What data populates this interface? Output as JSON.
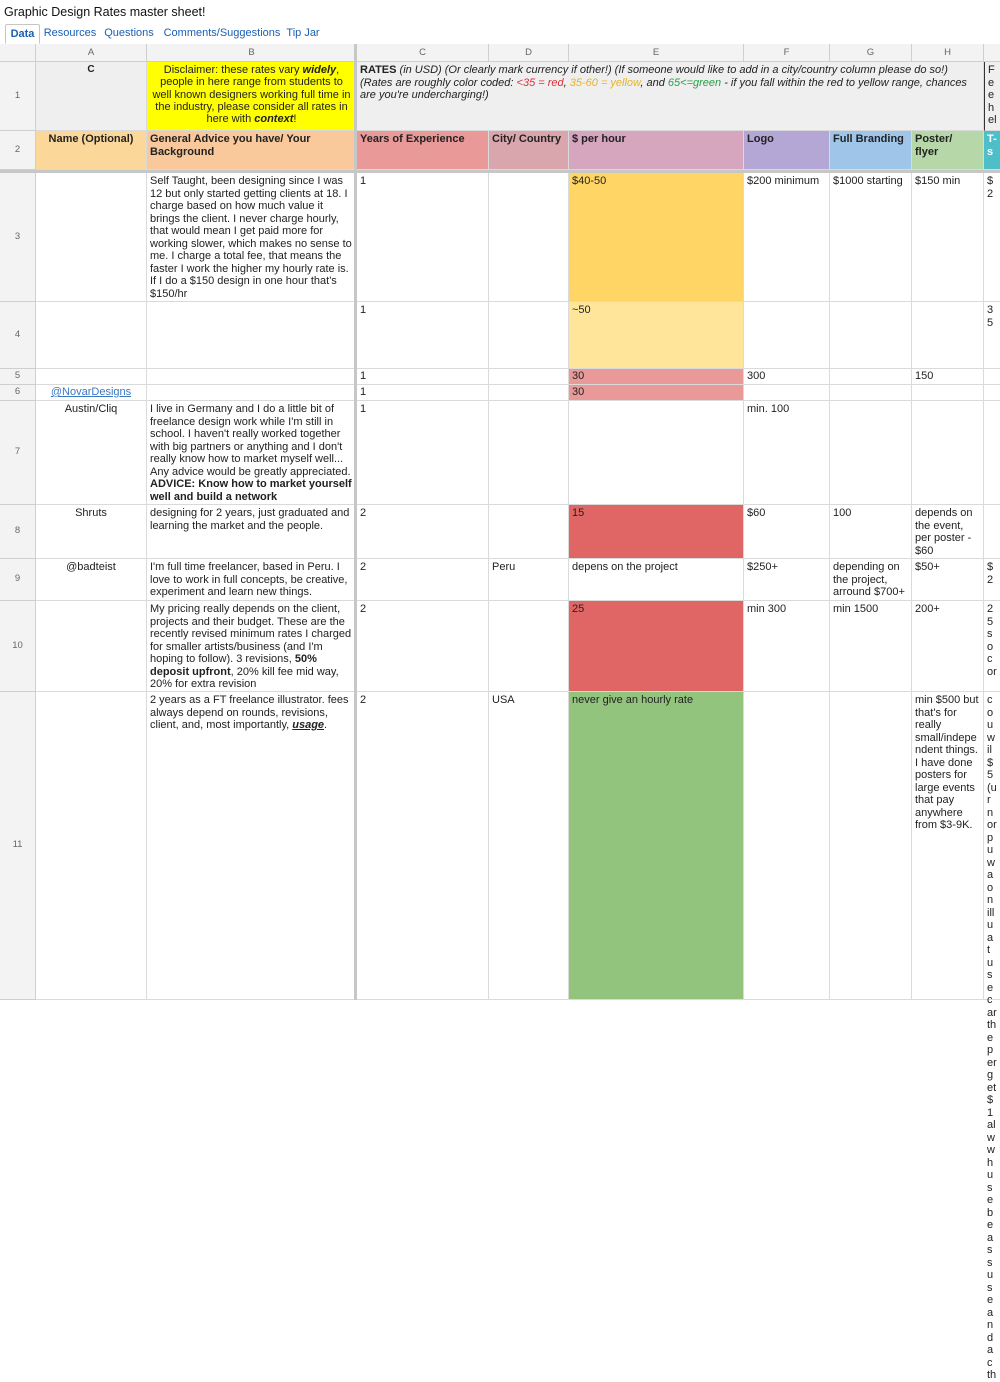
{
  "doc_title": "Graphic Design Rates master sheet!",
  "tabs": [
    "Data",
    "Resources",
    "Questions",
    "Comments/Suggestions",
    "Tip Jar"
  ],
  "columns": [
    "A",
    "B",
    "C",
    "D",
    "E",
    "F",
    "G",
    "H"
  ],
  "row_numbers": [
    "1",
    "2",
    "3",
    "4",
    "5",
    "6",
    "7",
    "8",
    "9",
    "10",
    "11"
  ],
  "colors": {
    "header_row1": "#efefef",
    "disclaimer_bg": "#ffff00",
    "name_hdr": "#fcd79a",
    "advice_hdr": "#f9c89b",
    "exp_hdr": "#ea9999",
    "city_hdr": "#d9a6ad",
    "rate_hdr": "#d5a6bd",
    "logo_hdr": "#b4a7d6",
    "branding_hdr": "#9fc5e8",
    "poster_hdr": "#b6d7a8",
    "tshirt_hdr": "#4ebfc9",
    "yellow_dark": "#ffd666",
    "yellow_light": "#ffe599",
    "red_light": "#ea9999",
    "red_dark": "#e06666",
    "green": "#93c47d"
  },
  "row1": {
    "a": "C",
    "b_pre": "Disclaimer: these rates vary ",
    "b_em1": "widely",
    "b_mid": ", people in here range from students to well known designers working full time in the industry, please consider all rates in here with ",
    "b_em2": "context",
    "b_end": "!",
    "c_rates": "RATES",
    "c_text1": " (in USD) (Or clearly mark currency if other!) (If someone would like to add in a city/country column please do so!) (Rates are roughly color coded: ",
    "c_red": "<35 = red",
    "c_sep1": ", ",
    "c_yellow": "35-60 = yellow",
    "c_sep2": ", and ",
    "c_green": "65<=green",
    "c_text2": " - if you fall within the red to yellow range, chances are you're undercharging!)",
    "i_partial": "Fee\nhel"
  },
  "headers": {
    "name": "Name (Optional)",
    "advice": "General Advice you have/ Your Background",
    "experience": "Years of Experience",
    "city": "City/ Country",
    "rate": "$ per hour",
    "logo": "Logo",
    "branding": "Full Branding",
    "poster": "Poster/\nflyer",
    "tshirt": "T-s"
  },
  "rows": {
    "r3": {
      "advice": "Self Taught, been designing since I was 12 but only started getting clients at 18. I charge based on how much value it brings the client. I never charge hourly, that would mean I get paid more for working slower, which makes no sense to me. I charge a total fee, that means the faster I work the higher my hourly rate is. If I do a $150 design in one hour that's $150/hr",
      "exp": "1",
      "rate": "$40-50",
      "logo": "$200 minimum",
      "branding": "$1000 starting",
      "poster": "$150 min",
      "tshirt": "$2"
    },
    "r4": {
      "exp": "1",
      "rate": "~50",
      "tshirt": "35"
    },
    "r5": {
      "exp": "1",
      "rate": "30",
      "logo": "300",
      "poster": "150"
    },
    "r6": {
      "name": "@NovarDesigns",
      "exp": "1",
      "rate": "30"
    },
    "r7": {
      "name": "Austin/Cliq",
      "advice": "I live in Germany and I do a little bit of freelance design work while I'm still in school. I haven't really worked together with big partners or anything and I don't really know how to market myself well... Any advice would be greatly appreciated.",
      "advice_bold": "ADVICE: Know how to market yourself well and build a network",
      "exp": "1",
      "logo": "min. 100"
    },
    "r8": {
      "name": "Shruts",
      "advice": "designing for 2 years, just graduated and learning the market and the people.",
      "exp": "2",
      "rate": "15",
      "logo": "$60",
      "branding": "100",
      "poster": "depends on the event, per poster - $60"
    },
    "r9": {
      "name": "@badteist",
      "advice": "I'm full time freelancer, based in Peru. I love to work in full concepts, be creative, experiment and learn new things.",
      "exp": "2",
      "city": "Peru",
      "rate": "depens on the project",
      "logo": "$250+",
      "branding": "depending on the project, arround $700+",
      "poster": "$50+",
      "tshirt": "$2"
    },
    "r10": {
      "advice_pre": "My pricing really depends on the client, projects and their budget. These are the recently revised minimum rates I charged for smaller artists/business (and I'm hoping to follow). 3 revisions, ",
      "advice_bold": "50% deposit upfront",
      "advice_post": ", 20% kill fee mid way, 20% for extra revision",
      "exp": "2",
      "rate": "25",
      "logo": "min 300",
      "branding": "min 1500",
      "poster": "200+",
      "tshirt": "25\nso\ncor"
    },
    "r11": {
      "advice_pre": "2 years as a FT freelance illustrator. fees always depend on rounds, revisions, client, and, most importantly, ",
      "advice_em": "usage",
      "advice_post": ".",
      "exp": "2",
      "city": "USA",
      "rate": "never give an hourly rate",
      "poster": "min $500 but that's for really small/indepe ndent things. I have done posters for large events that pay anywhere from $3-9K.",
      "tshirt": "cou\nwil\n$5\n(ur\nnor\npu\nwa\non\nillu\na t\nuse\ncar\nthe\nper\nget\n$1\nalw\nwh\nuse\nbe\nass\nuse\nand\na c\nth"
    }
  }
}
